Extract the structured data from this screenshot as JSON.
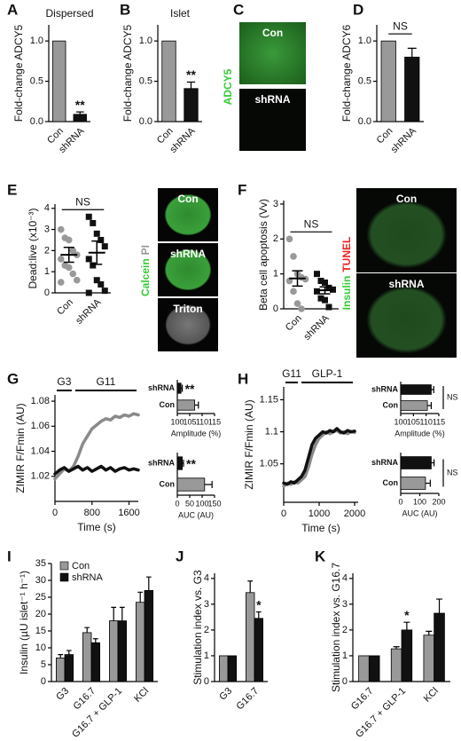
{
  "chart_data": [
    {
      "type": "bar",
      "panel": "A",
      "title": "Dispersed",
      "y_label": "Fold-change ADCY5",
      "categories": [
        "Con",
        "shRNA"
      ],
      "values": [
        1.0,
        0.09
      ],
      "errors": [
        null,
        0.03
      ],
      "colors": [
        "#999999",
        "#111111"
      ],
      "significance": [
        null,
        "**"
      ],
      "ylim": [
        0,
        1.2
      ],
      "yticks": [
        {
          "value": 0,
          "label": "0.0"
        },
        0.5,
        {
          "value": 1,
          "label": "1.0"
        }
      ]
    },
    {
      "type": "bar",
      "panel": "B",
      "title": "Islet",
      "y_label": "Fold-change ADCY5",
      "categories": [
        "Con",
        "shRNA"
      ],
      "values": [
        1.0,
        0.41
      ],
      "errors": [
        null,
        0.08
      ],
      "colors": [
        "#999999",
        "#111111"
      ],
      "significance": [
        null,
        "**"
      ],
      "ylim": [
        0,
        1.2
      ],
      "yticks": [
        {
          "value": 0,
          "label": "0.0"
        },
        0.5,
        {
          "value": 1,
          "label": "1.0"
        }
      ]
    },
    {
      "type": "bar",
      "panel": "D",
      "y_label": "Fold-change ADCY6",
      "categories": [
        "Con",
        "shRNA"
      ],
      "values": [
        1.0,
        0.8
      ],
      "errors": [
        null,
        0.11
      ],
      "colors": [
        "#999999",
        "#111111"
      ],
      "comparison": "NS",
      "ylim": [
        0,
        1.2
      ],
      "yticks": [
        {
          "value": 0,
          "label": "0.0"
        },
        0.5,
        {
          "value": 1,
          "label": "1.0"
        }
      ]
    },
    {
      "type": "strip",
      "panel": "E",
      "y_label": "Dead:live (x10⁻³)",
      "categories": [
        "Con",
        "shRNA"
      ],
      "points": [
        [
          3.0,
          2.6,
          2.5,
          2.0,
          1.8,
          1.6,
          1.3,
          1.2,
          0.9,
          0.6,
          0.5
        ],
        [
          3.6,
          3.3,
          2.8,
          2.5,
          2.2,
          1.6,
          1.3,
          0.6,
          0.4,
          0.1,
          0.0
        ]
      ],
      "means": [
        1.8,
        1.9
      ],
      "sems": [
        0.35,
        0.55
      ],
      "colors": [
        "#999999",
        "#111111"
      ],
      "markers": [
        "circle",
        "square"
      ],
      "comparison": "NS",
      "ylim": [
        0,
        4.2
      ],
      "yticks": [
        0,
        1,
        2,
        3,
        4
      ]
    },
    {
      "type": "strip",
      "panel": "F",
      "y_label": "Beta cell apoptosis (Vv)",
      "categories": [
        "Con",
        "shRNA"
      ],
      "points": [
        [
          2.0,
          1.5,
          1.0,
          0.9,
          0.85,
          0.8,
          0.5,
          0.15,
          0.0
        ],
        [
          1.0,
          0.8,
          0.75,
          0.6,
          0.55,
          0.5,
          0.3,
          0.25,
          0.05
        ]
      ],
      "means": [
        0.87,
        0.53
      ],
      "sems": [
        0.22,
        0.1
      ],
      "colors": [
        "#999999",
        "#111111"
      ],
      "markers": [
        "circle",
        "square"
      ],
      "comparison": "NS",
      "ylim": [
        0,
        3.1
      ],
      "yticks": [
        0,
        1,
        2,
        3
      ]
    },
    {
      "type": "line",
      "panel": "G",
      "y_label": "ZIMIR F/Fmin (AU)",
      "x_label": "Time (s)",
      "x": [
        0,
        100,
        200,
        300,
        400,
        500,
        600,
        700,
        800,
        900,
        1000,
        1100,
        1200,
        1300,
        1400,
        1500,
        1600,
        1700,
        1800
      ],
      "series": [
        {
          "color": "#8a8a8a",
          "values": [
            1.018,
            1.022,
            1.026,
            1.024,
            1.028,
            1.036,
            1.046,
            1.052,
            1.058,
            1.061,
            1.064,
            1.066,
            1.065,
            1.068,
            1.067,
            1.069,
            1.068,
            1.07,
            1.069
          ]
        },
        {
          "color": "#111111",
          "values": [
            1.022,
            1.025,
            1.027,
            1.024,
            1.026,
            1.028,
            1.025,
            1.027,
            1.024,
            1.026,
            1.028,
            1.025,
            1.027,
            1.024,
            1.026,
            1.027,
            1.025,
            1.026,
            1.025
          ]
        }
      ],
      "stimuli": [
        {
          "label": "G3",
          "start": 0,
          "end": 400
        },
        {
          "label": "G11",
          "start": 400,
          "end": 1800
        }
      ],
      "xlim": [
        0,
        1800
      ],
      "xticks": [
        0,
        800,
        1600
      ],
      "ylim": [
        1.0,
        1.085
      ],
      "yticks": [
        1.02,
        1.04,
        1.06,
        1.08
      ]
    },
    {
      "type": "hbar",
      "x_label": "Amplitude (%)",
      "categories": [
        "shRNA",
        "Con"
      ],
      "values": [
        101.5,
        107
      ],
      "errors": [
        0.5,
        1.5
      ],
      "colors": [
        "#111111",
        "#999999"
      ],
      "significance": [
        "**",
        null
      ],
      "xlim": [
        100,
        115
      ],
      "xticks": [
        100,
        105,
        110,
        115
      ]
    },
    {
      "type": "hbar",
      "x_label": "AUC (AU)",
      "categories": [
        "shRNA",
        "Con"
      ],
      "values": [
        20,
        110
      ],
      "errors": [
        5,
        30
      ],
      "colors": [
        "#111111",
        "#999999"
      ],
      "significance": [
        "**",
        null
      ],
      "xlim": [
        0,
        150
      ],
      "xticks": [
        0,
        50,
        100,
        150
      ]
    },
    {
      "type": "line",
      "panel": "H",
      "y_label": "ZIMIR F/Fmin (AU)",
      "x_label": "Time (s)",
      "x": [
        0,
        100,
        200,
        300,
        400,
        500,
        600,
        700,
        800,
        900,
        1000,
        1100,
        1200,
        1300,
        1400,
        1500,
        1600,
        1700,
        1800,
        1900,
        2000
      ],
      "series": [
        {
          "color": "#8a8a8a",
          "values": [
            1.015,
            1.02,
            1.018,
            1.022,
            1.02,
            1.025,
            1.03,
            1.045,
            1.065,
            1.08,
            1.09,
            1.095,
            1.1,
            1.097,
            1.1,
            1.102,
            1.098,
            1.1,
            1.097,
            1.1,
            1.099
          ]
        },
        {
          "color": "#111111",
          "values": [
            1.02,
            1.018,
            1.022,
            1.02,
            1.025,
            1.03,
            1.04,
            1.06,
            1.08,
            1.09,
            1.095,
            1.1,
            1.098,
            1.102,
            1.1,
            1.105,
            1.1,
            1.098,
            1.102,
            1.1,
            1.101
          ]
        }
      ],
      "stimuli": [
        {
          "label": "G11",
          "start": 0,
          "end": 450
        },
        {
          "label": "GLP-1",
          "start": 450,
          "end": 2000
        }
      ],
      "xlim": [
        0,
        2100
      ],
      "xticks": [
        0,
        1000,
        2000
      ],
      "ylim": [
        0.99,
        1.17
      ],
      "yticks": [
        1.05,
        1.1,
        1.15
      ]
    },
    {
      "type": "hbar",
      "x_label": "Amplitude (%)",
      "categories": [
        "shRNA",
        "Con"
      ],
      "values": [
        112,
        110.5
      ],
      "errors": [
        1,
        1.5
      ],
      "colors": [
        "#111111",
        "#999999"
      ],
      "comparison": "NS",
      "xlim": [
        100,
        115
      ],
      "xticks": [
        100,
        105,
        110,
        115
      ]
    },
    {
      "type": "hbar",
      "x_label": "AUC (AU)",
      "categories": [
        "shRNA",
        "Con"
      ],
      "values": [
        160,
        130
      ],
      "errors": [
        15,
        25
      ],
      "colors": [
        "#111111",
        "#999999"
      ],
      "comparison": "NS",
      "xlim": [
        0,
        200
      ],
      "xticks": [
        0,
        100,
        200
      ]
    },
    {
      "type": "grouped",
      "panel": "I",
      "y_label": "Insulin (µU islet⁻¹ h⁻¹)",
      "categories": [
        "G3",
        "G16.7",
        "G16.7 + GLP-1",
        "KCl"
      ],
      "series": [
        {
          "name": "Con",
          "color": "#999999",
          "values": [
            7,
            14.5,
            18,
            23.5
          ],
          "errors": [
            1,
            1.5,
            4,
            3
          ]
        },
        {
          "name": "shRNA",
          "color": "#111111",
          "values": [
            8,
            11.5,
            18,
            27
          ],
          "errors": [
            1.2,
            1.2,
            4,
            4
          ]
        }
      ],
      "legend": "upper left",
      "ylim": [
        0,
        35
      ],
      "yticks": [
        0,
        5,
        10,
        15,
        20,
        25,
        30,
        35
      ]
    },
    {
      "type": "grouped",
      "panel": "J",
      "y_label": "Stimulation index vs. G3",
      "categories": [
        "G3",
        "G16.7"
      ],
      "series": [
        {
          "color": "#999999",
          "values": [
            1,
            3.45
          ],
          "errors": [
            null,
            0.45
          ]
        },
        {
          "color": "#111111",
          "values": [
            1,
            2.45
          ],
          "errors": [
            null,
            0.25
          ],
          "significance": [
            null,
            "*"
          ]
        }
      ],
      "ylim": [
        0,
        4.2
      ],
      "yticks": [
        0,
        1,
        2,
        3,
        4
      ]
    },
    {
      "type": "grouped",
      "panel": "K",
      "y_label": "Stimulation index vs. G16.7",
      "categories": [
        "G16.7",
        "G16.7 + GLP-1",
        "KCl"
      ],
      "series": [
        {
          "color": "#999999",
          "values": [
            1,
            1.27,
            1.8
          ],
          "errors": [
            null,
            0.08,
            0.15
          ]
        },
        {
          "color": "#111111",
          "values": [
            1,
            2.0,
            2.65
          ],
          "errors": [
            null,
            0.3,
            0.55
          ],
          "significance": [
            null,
            "*",
            null
          ]
        }
      ],
      "ylim": [
        0,
        4.2
      ],
      "yticks": [
        0,
        1,
        2,
        3,
        4
      ]
    }
  ],
  "images": [
    {
      "panel": "C",
      "stains": [
        {
          "text": "ADCY5",
          "color": "#33cc33"
        }
      ],
      "tiles": [
        "Con",
        "shRNA"
      ]
    },
    {
      "stains": [
        {
          "text": "Calcein",
          "color": "#33cc33"
        },
        {
          "text": "PI",
          "color": "#999999"
        }
      ],
      "tiles": [
        "Con",
        "shRNA",
        "Triton"
      ]
    },
    {
      "stains": [
        {
          "text": "Insulin",
          "color": "#33cc33"
        },
        {
          "text": "TUNEL",
          "color": "#ee2222"
        }
      ],
      "tiles": [
        "Con",
        "shRNA"
      ]
    }
  ]
}
